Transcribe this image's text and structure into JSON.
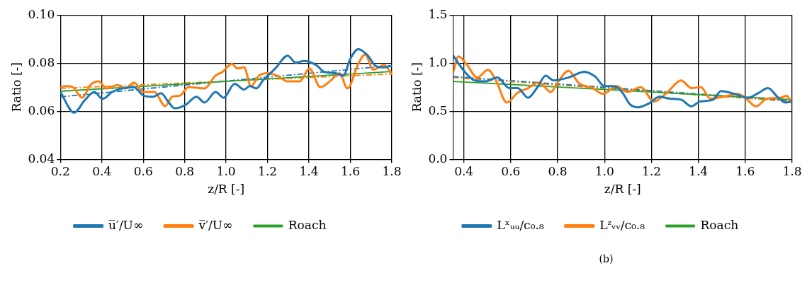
{
  "chart_data": [
    {
      "type": "line",
      "xlabel": "z/R [-]",
      "ylabel": "Ratio [-]",
      "xlim": [
        0.2,
        1.8
      ],
      "xticks": [
        0.2,
        0.4,
        0.6,
        0.8,
        {
          "value": 1.0,
          "label": "1.0"
        },
        1.2,
        1.4,
        1.6,
        1.8
      ],
      "ylim": [
        0.04,
        0.1
      ],
      "yticks": [
        {
          "value": 0.04,
          "label": "0.04"
        },
        {
          "value": 0.06,
          "label": "0.06"
        },
        {
          "value": 0.08,
          "label": "0.08"
        },
        {
          "value": 0.1,
          "label": "0.10"
        }
      ],
      "grid": true,
      "legend": "bottom",
      "series": [
        {
          "name": "u̅′/U∞",
          "color": "#1f77b4",
          "line_style": "solid",
          "x": [
            0.2,
            0.266,
            0.318,
            0.364,
            0.403,
            0.45,
            0.502,
            0.555,
            0.601,
            0.647,
            0.686,
            0.719,
            0.752,
            0.804,
            0.857,
            0.896,
            0.949,
            0.988,
            1.041,
            1.087,
            1.113,
            1.146,
            1.179,
            1.238,
            1.297,
            1.336,
            1.376,
            1.435,
            1.474,
            1.527,
            1.566,
            1.599,
            1.638,
            1.684,
            1.724,
            1.763,
            1.8
          ],
          "values": [
            0.068,
            0.0594,
            0.0646,
            0.068,
            0.0651,
            0.068,
            0.0695,
            0.07,
            0.0665,
            0.066,
            0.0675,
            0.0641,
            0.0612,
            0.0626,
            0.066,
            0.0636,
            0.068,
            0.0656,
            0.0714,
            0.069,
            0.0704,
            0.0695,
            0.0729,
            0.0778,
            0.0831,
            0.0802,
            0.0809,
            0.0792,
            0.0763,
            0.0758,
            0.0748,
            0.0817,
            0.0858,
            0.0831,
            0.0787,
            0.0782,
            0.0789
          ]
        },
        {
          "name": "v̅′/U∞",
          "color": "#ff7f0e",
          "line_style": "solid",
          "x": [
            0.2,
            0.226,
            0.259,
            0.305,
            0.345,
            0.384,
            0.423,
            0.476,
            0.515,
            0.555,
            0.601,
            0.653,
            0.706,
            0.739,
            0.778,
            0.818,
            0.896,
            0.949,
            0.982,
            1.028,
            1.054,
            1.087,
            1.12,
            1.159,
            1.199,
            1.245,
            1.297,
            1.356,
            1.402,
            1.455,
            1.507,
            1.547,
            1.586,
            1.638,
            1.671,
            1.711,
            1.763,
            1.8
          ],
          "values": [
            0.07,
            0.0704,
            0.07,
            0.0656,
            0.0709,
            0.0724,
            0.0695,
            0.0709,
            0.0695,
            0.0719,
            0.068,
            0.068,
            0.0621,
            0.066,
            0.0665,
            0.07,
            0.0695,
            0.0748,
            0.0763,
            0.0797,
            0.0778,
            0.0782,
            0.0704,
            0.0748,
            0.0758,
            0.0748,
            0.0724,
            0.0724,
            0.0778,
            0.07,
            0.0729,
            0.0758,
            0.0695,
            0.0797,
            0.0836,
            0.0773,
            0.0792,
            0.0753
          ]
        },
        {
          "name": "Roach",
          "color": "#2ca02c",
          "line_style": "solid",
          "x": [
            0.2,
            1.8
          ],
          "values": [
            0.0683,
            0.0765
          ]
        },
        {
          "color": "#1f77b4",
          "line_style": "dashed",
          "x": [
            0.2,
            1.8
          ],
          "values": [
            0.066,
            0.079
          ]
        },
        {
          "color": "#ff7f0e",
          "line_style": "dashed",
          "x": [
            0.2,
            1.8
          ],
          "values": [
            0.0695,
            0.0755
          ]
        }
      ]
    },
    {
      "type": "line",
      "xlabel": "z/R [-]",
      "ylabel": "Ratio [-]",
      "xlim": [
        0.354,
        1.8
      ],
      "xticks": [
        0.4,
        0.6,
        0.8,
        {
          "value": 1.0,
          "label": "1.0"
        },
        1.2,
        1.4,
        1.6,
        1.8
      ],
      "ylim": [
        0,
        1.5
      ],
      "yticks": [
        {
          "value": 0,
          "label": "0.0"
        },
        0.5,
        {
          "value": 1.0,
          "label": "1.0"
        },
        1.5
      ],
      "grid": true,
      "legend": "bottom",
      "annotations": [
        "(b)"
      ],
      "series": [
        {
          "name": "Lˣᵤᵤ/c₀.₈",
          "color": "#1f77b4",
          "line_style": "solid",
          "x": [
            0.354,
            0.4,
            0.446,
            0.491,
            0.543,
            0.594,
            0.629,
            0.674,
            0.714,
            0.749,
            0.783,
            0.846,
            0.914,
            0.96,
            1.0,
            1.04,
            1.074,
            1.109,
            1.143,
            1.189,
            1.234,
            1.28,
            1.326,
            1.371,
            1.406,
            1.463,
            1.497,
            1.554,
            1.611,
            1.657,
            1.697,
            1.737,
            1.771,
            1.797
          ],
          "values": [
            1.08,
            0.92,
            0.82,
            0.81,
            0.85,
            0.74,
            0.74,
            0.64,
            0.75,
            0.87,
            0.82,
            0.85,
            0.91,
            0.86,
            0.76,
            0.76,
            0.7,
            0.57,
            0.54,
            0.58,
            0.65,
            0.63,
            0.62,
            0.55,
            0.6,
            0.62,
            0.71,
            0.68,
            0.64,
            0.69,
            0.74,
            0.65,
            0.59,
            0.6
          ]
        },
        {
          "name": "Lᶻᵥᵥ/c₀.₈",
          "color": "#ff7f0e",
          "line_style": "solid",
          "x": [
            0.354,
            0.377,
            0.411,
            0.457,
            0.503,
            0.537,
            0.583,
            0.629,
            0.674,
            0.72,
            0.771,
            0.8,
            0.846,
            0.891,
            0.949,
            0.994,
            1.051,
            1.097,
            1.154,
            1.211,
            1.269,
            1.326,
            1.371,
            1.411,
            1.451,
            1.509,
            1.566,
            1.6,
            1.646,
            1.691,
            1.749,
            1.777,
            1.797
          ],
          "values": [
            0.9,
            1.07,
            0.99,
            0.85,
            0.93,
            0.82,
            0.59,
            0.69,
            0.74,
            0.8,
            0.7,
            0.8,
            0.92,
            0.79,
            0.74,
            0.68,
            0.76,
            0.7,
            0.75,
            0.6,
            0.7,
            0.82,
            0.74,
            0.75,
            0.63,
            0.65,
            0.68,
            0.64,
            0.55,
            0.63,
            0.64,
            0.66,
            0.59
          ]
        },
        {
          "name": "Roach",
          "color": "#2ca02c",
          "line_style": "solid",
          "x": [
            0.354,
            1.8
          ],
          "values": [
            0.81,
            0.62
          ]
        },
        {
          "color": "#1f77b4",
          "line_style": "dashed",
          "x": [
            0.354,
            1.8
          ],
          "values": [
            0.86,
            0.61
          ]
        },
        {
          "color": "#ff7f0e",
          "line_style": "dashed",
          "x": [
            0.354,
            1.8
          ],
          "values": [
            0.85,
            0.6
          ]
        }
      ]
    }
  ]
}
